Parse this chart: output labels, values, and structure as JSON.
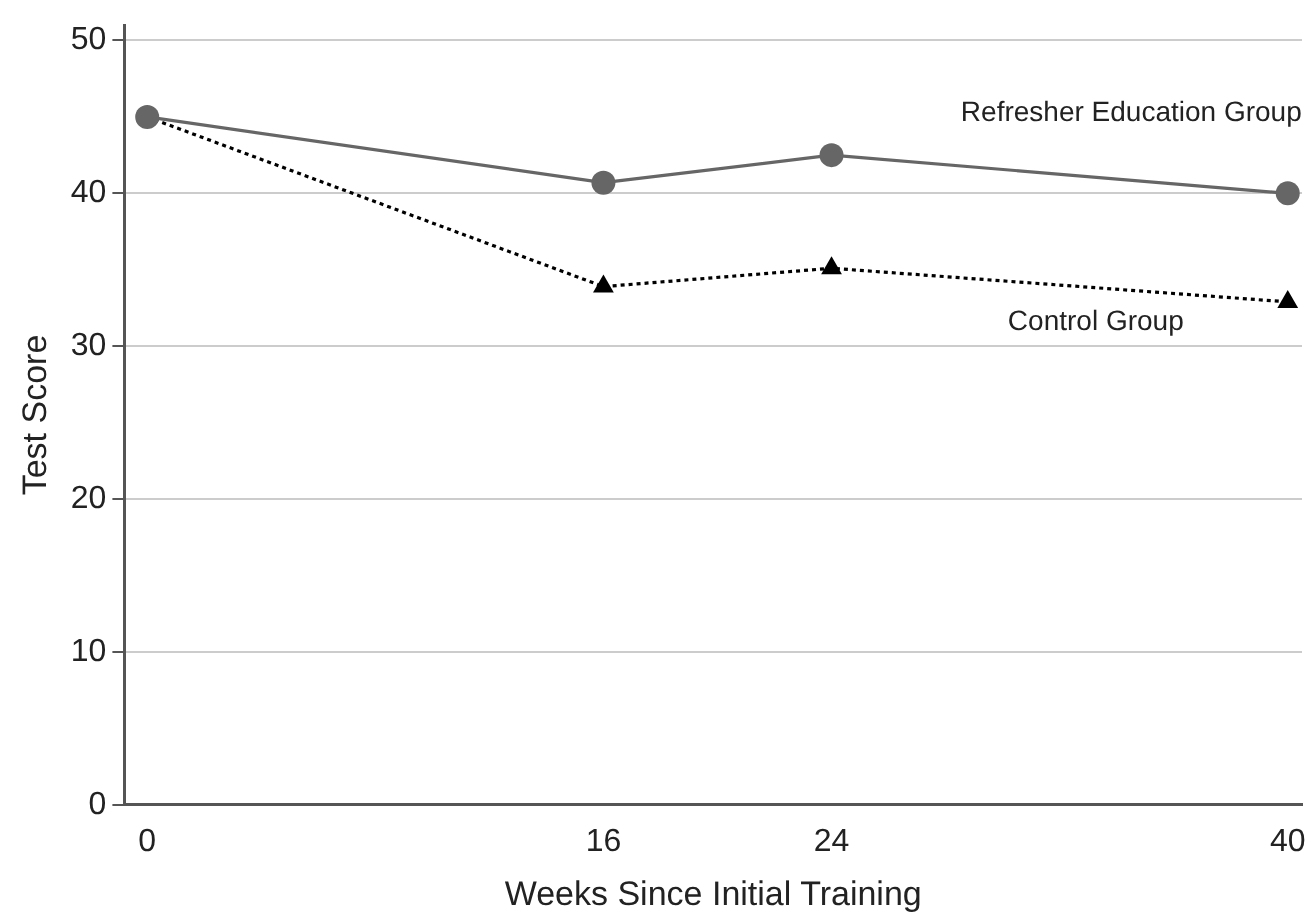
{
  "chart_data": {
    "type": "line",
    "xlabel": "Weeks Since Initial Training",
    "ylabel": "Test Score",
    "x": [
      0,
      16,
      24,
      40
    ],
    "xlim": [
      -0.8,
      40.5
    ],
    "xticks": [
      0,
      16,
      24,
      40
    ],
    "ylim": [
      0,
      51
    ],
    "yticks": [
      0,
      10,
      20,
      30,
      40,
      50
    ],
    "grid": "y",
    "legend": false,
    "series": [
      {
        "name": "Refresher Education Group",
        "color": "#666666",
        "values": [
          45.0,
          40.7,
          42.5,
          40.0
        ],
        "marker": "circle",
        "line_style": "solid"
      },
      {
        "name": "Control Group",
        "color": "#000000",
        "values": [
          45.0,
          33.9,
          35.1,
          32.9
        ],
        "marker": "triangle",
        "line_style": "dotted"
      }
    ]
  }
}
